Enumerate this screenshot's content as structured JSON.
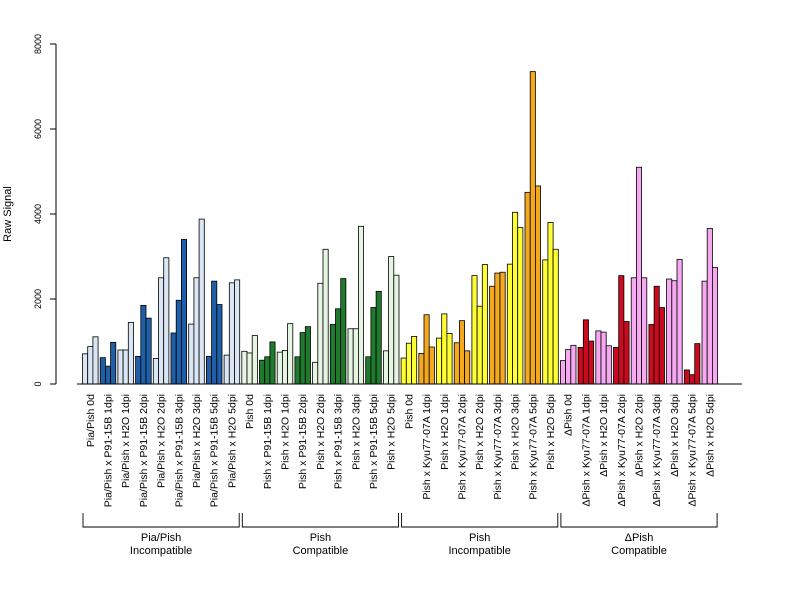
{
  "chart_data": {
    "type": "bar",
    "title": "",
    "xlabel": "",
    "ylabel": "Raw Signal",
    "ylim": [
      0,
      8000
    ],
    "yticks": [
      0,
      2000,
      4000,
      6000,
      8000
    ],
    "grid": false,
    "legend": "none",
    "categories": [
      "Pia/Pish 0d",
      "Pia/Pish x P91-15B 1dpi",
      "Pia/Pish x H2O 1dpi",
      "Pia/Pish x P91-15B 2dpi",
      "Pia/Pish x H2O 2dpi",
      "Pia/Pish x P91-15B 3dpi",
      "Pia/Pish x H2O 3dpi",
      "Pia/Pish x P91-15B 5dpi",
      "Pia/Pish x H2O 5dpi",
      "Pish 0d",
      "Pish x P91-15B 1dpi",
      "Pish x H2O 1dpi",
      "Pish x P91-15B 2dpi",
      "Pish x H2O 2dpi",
      "Pish x P91-15B 3dpi",
      "Pish x H2O 3dpi",
      "Pish x P91-15B 5dpi",
      "Pish x H2O 5dpi",
      "Pish 0d",
      "Pish x Kyu77-07A 1dpi",
      "Pish x H2O 1dpi",
      "Pish x Kyu77-07A 2dpi",
      "Pish x H2O 2dpi",
      "Pish x Kyu77-07A 3dpi",
      "Pish x H2O 3dpi",
      "Pish x Kyu77-07A 5dpi",
      "Pish x H2O 5dpi",
      "ΔPish 0d",
      "ΔPish x Kyu77-07A 1dpi",
      "ΔPish x H2O 1dpi",
      "ΔPish x Kyu77-07A 2dpi",
      "ΔPish x H2O 2dpi",
      "ΔPish x Kyu77-07A 3dpi",
      "ΔPish x H2O 3dpi",
      "ΔPish x Kyu77-07A 5dpi",
      "ΔPish x H2O 5dpi"
    ],
    "bar_colors": [
      "#dbe6f4",
      "#1f5fa8",
      "#dbe6f4",
      "#1f5fa8",
      "#dbe6f4",
      "#1f5fa8",
      "#dbe6f4",
      "#1f5fa8",
      "#dbe6f4",
      "#e6f4e2",
      "#1f7a2e",
      "#e6f4e2",
      "#1f7a2e",
      "#e6f4e2",
      "#1f7a2e",
      "#e6f4e2",
      "#1f7a2e",
      "#e6f4e2",
      "#ffff33",
      "#f4a81d",
      "#ffff33",
      "#f4a81d",
      "#ffff33",
      "#f4a81d",
      "#ffff33",
      "#f4a81d",
      "#ffff33",
      "#f6a8f0",
      "#cc0a1f",
      "#f6a8f0",
      "#cc0a1f",
      "#f6a8f0",
      "#cc0a1f",
      "#f6a8f0",
      "#cc0a1f",
      "#f6a8f0"
    ],
    "values": [
      [
        710,
        880,
        1110
      ],
      [
        620,
        420,
        980
      ],
      [
        800,
        800,
        1450
      ],
      [
        650,
        1850,
        1550
      ],
      [
        600,
        2500,
        2970
      ],
      [
        1200,
        1970,
        3400
      ],
      [
        1410,
        2500,
        3880
      ],
      [
        650,
        2420,
        1870
      ],
      [
        680,
        2380,
        2450
      ],
      [
        770,
        730,
        1140
      ],
      [
        560,
        640,
        990
      ],
      [
        750,
        790,
        1420
      ],
      [
        640,
        1210,
        1350
      ],
      [
        510,
        2370,
        3170
      ],
      [
        1400,
        1770,
        2480
      ],
      [
        1300,
        1300,
        3710
      ],
      [
        640,
        1800,
        2180
      ],
      [
        780,
        3000,
        2560
      ],
      [
        610,
        960,
        1120
      ],
      [
        720,
        1630,
        870
      ],
      [
        1080,
        1650,
        1190
      ],
      [
        970,
        1490,
        780
      ],
      [
        2550,
        1830,
        2810
      ],
      [
        2300,
        2610,
        2630
      ],
      [
        2820,
        4040,
        3680
      ],
      [
        4510,
        7350,
        4660
      ],
      [
        2920,
        3800,
        3170
      ],
      [
        550,
        810,
        910
      ],
      [
        860,
        1510,
        1010
      ],
      [
        1250,
        1220,
        900
      ],
      [
        860,
        2550,
        1470
      ],
      [
        2500,
        5100,
        2500
      ],
      [
        1400,
        2300,
        1800
      ],
      [
        2470,
        2430,
        2930
      ],
      [
        330,
        220,
        950
      ],
      [
        2420,
        3660,
        2740
      ]
    ],
    "groups": [
      {
        "label_line1": "Pia/Pish",
        "label_line2": "Incompatible",
        "start": 0,
        "end": 8
      },
      {
        "label_line1": "Pish",
        "label_line2": "Compatible",
        "start": 9,
        "end": 17
      },
      {
        "label_line1": "Pish",
        "label_line2": "Incompatible",
        "start": 18,
        "end": 26
      },
      {
        "label_line1": "ΔPish",
        "label_line2": "Compatible",
        "start": 27,
        "end": 35
      }
    ]
  }
}
